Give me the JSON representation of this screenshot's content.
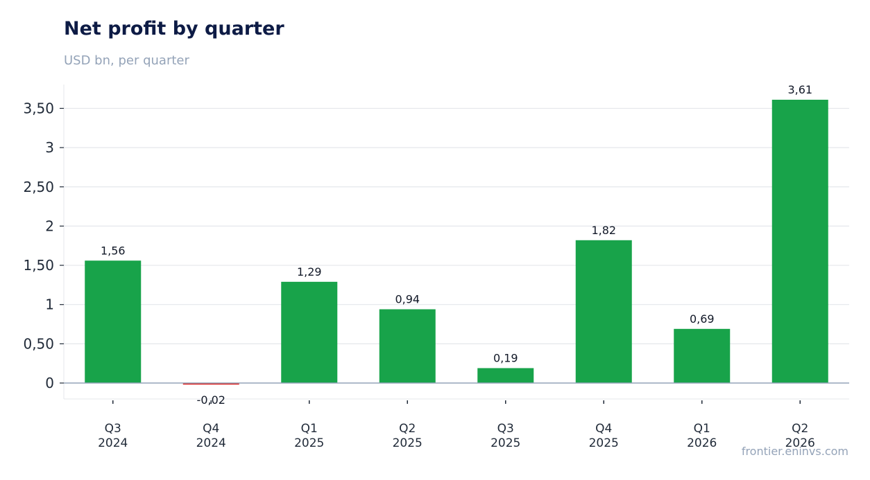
{
  "header": {
    "title": "Net profit by quarter",
    "subtitle": "USD bn, per quarter"
  },
  "footer": {
    "source": "frontier.eninvs.com"
  },
  "chart_data": {
    "type": "bar",
    "title": "Net profit by quarter",
    "subtitle": "USD bn, per quarter",
    "xlabel": "",
    "ylabel": "",
    "categories": [
      [
        "Q3",
        "2024"
      ],
      [
        "Q4",
        "2024"
      ],
      [
        "Q1",
        "2025"
      ],
      [
        "Q2",
        "2025"
      ],
      [
        "Q3",
        "2025"
      ],
      [
        "Q4",
        "2025"
      ],
      [
        "Q1",
        "2026"
      ],
      [
        "Q2",
        "2026"
      ]
    ],
    "values": [
      1.56,
      -0.02,
      1.29,
      0.94,
      0.19,
      1.82,
      0.69,
      3.61
    ],
    "value_labels": [
      "1,56",
      "-0,02",
      "1,29",
      "0,94",
      "0,19",
      "1,82",
      "0,69",
      "3,61"
    ],
    "yticks": [
      0,
      0.5,
      1,
      1.5,
      2,
      2.5,
      3,
      3.5
    ],
    "ytick_labels": [
      "0",
      "0,50",
      "1",
      "1,50",
      "2",
      "2,50",
      "3",
      "3,50"
    ],
    "ylim": [
      -0.2,
      3.8
    ],
    "grid": true,
    "legend": "none",
    "colors": {
      "positive": "#18a34a",
      "negative": "#dc2626",
      "grid": "#e5e7eb",
      "zero_line": "#94a3b8",
      "axis": "#e5e7eb"
    }
  }
}
